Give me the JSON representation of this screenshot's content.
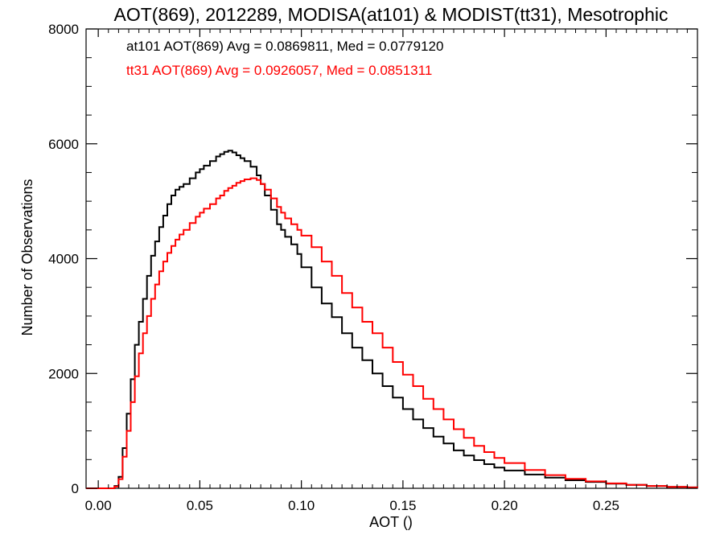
{
  "chart_data": {
    "type": "line",
    "title": "AOT(869), 2012289, MODISA(at101) & MODIST(tt31), Mesotrophic",
    "xlabel": "AOT ()",
    "ylabel": "Number of Observations",
    "xlim": [
      -0.006,
      0.295
    ],
    "ylim": [
      0,
      8000
    ],
    "x_ticks": [
      0.0,
      0.05,
      0.1,
      0.15,
      0.2,
      0.25
    ],
    "x_tick_labels": [
      "0.00",
      "0.05",
      "0.10",
      "0.15",
      "0.20",
      "0.25"
    ],
    "y_ticks": [
      0,
      2000,
      4000,
      6000,
      8000
    ],
    "y_tick_labels": [
      "0",
      "2000",
      "4000",
      "6000",
      "8000"
    ],
    "grid": false,
    "step_style": "histogram-step",
    "annotations": [
      {
        "text": "at101 AOT(869) Avg = 0.0869811, Med = 0.0779120",
        "color": "#000000"
      },
      {
        "text": "tt31 AOT(869) Avg = 0.0926057, Med = 0.0851311",
        "color": "#ff0000"
      }
    ],
    "series": [
      {
        "color": "#000000",
        "x": [
          -0.006,
          0.0,
          0.005,
          0.008,
          0.01,
          0.012,
          0.014,
          0.016,
          0.018,
          0.02,
          0.022,
          0.024,
          0.026,
          0.028,
          0.03,
          0.032,
          0.034,
          0.036,
          0.038,
          0.04,
          0.042,
          0.045,
          0.048,
          0.05,
          0.052,
          0.055,
          0.058,
          0.06,
          0.062,
          0.064,
          0.066,
          0.068,
          0.07,
          0.072,
          0.075,
          0.078,
          0.08,
          0.082,
          0.085,
          0.088,
          0.09,
          0.092,
          0.095,
          0.098,
          0.1,
          0.105,
          0.11,
          0.115,
          0.12,
          0.125,
          0.13,
          0.135,
          0.14,
          0.145,
          0.15,
          0.155,
          0.16,
          0.165,
          0.17,
          0.175,
          0.18,
          0.185,
          0.19,
          0.195,
          0.2,
          0.21,
          0.22,
          0.23,
          0.24,
          0.25,
          0.26,
          0.27,
          0.28,
          0.29,
          0.295
        ],
        "values": [
          0,
          0,
          0,
          40,
          200,
          700,
          1300,
          1900,
          2500,
          2900,
          3300,
          3700,
          4050,
          4300,
          4550,
          4750,
          4950,
          5100,
          5200,
          5250,
          5300,
          5400,
          5500,
          5560,
          5620,
          5700,
          5780,
          5820,
          5860,
          5880,
          5850,
          5800,
          5750,
          5700,
          5600,
          5450,
          5300,
          5100,
          4850,
          4600,
          4500,
          4380,
          4250,
          4080,
          3850,
          3500,
          3220,
          2980,
          2700,
          2450,
          2230,
          2000,
          1780,
          1580,
          1380,
          1200,
          1050,
          900,
          780,
          660,
          570,
          490,
          420,
          360,
          310,
          240,
          185,
          140,
          110,
          80,
          60,
          40,
          25,
          15,
          10
        ]
      },
      {
        "color": "#ff0000",
        "x": [
          -0.006,
          0.0,
          0.005,
          0.008,
          0.01,
          0.012,
          0.014,
          0.016,
          0.018,
          0.02,
          0.022,
          0.024,
          0.026,
          0.028,
          0.03,
          0.032,
          0.034,
          0.036,
          0.038,
          0.04,
          0.042,
          0.045,
          0.048,
          0.05,
          0.052,
          0.055,
          0.058,
          0.06,
          0.062,
          0.064,
          0.066,
          0.068,
          0.07,
          0.072,
          0.075,
          0.078,
          0.08,
          0.082,
          0.085,
          0.088,
          0.09,
          0.092,
          0.095,
          0.098,
          0.1,
          0.105,
          0.11,
          0.115,
          0.12,
          0.125,
          0.13,
          0.135,
          0.14,
          0.145,
          0.15,
          0.155,
          0.16,
          0.165,
          0.17,
          0.175,
          0.18,
          0.185,
          0.19,
          0.195,
          0.2,
          0.21,
          0.22,
          0.23,
          0.24,
          0.25,
          0.26,
          0.27,
          0.28,
          0.29,
          0.295
        ],
        "values": [
          0,
          0,
          0,
          30,
          160,
          550,
          1000,
          1500,
          1950,
          2350,
          2700,
          3000,
          3300,
          3550,
          3780,
          3950,
          4100,
          4220,
          4330,
          4420,
          4500,
          4620,
          4730,
          4800,
          4870,
          4950,
          5050,
          5100,
          5180,
          5230,
          5270,
          5320,
          5350,
          5380,
          5400,
          5370,
          5300,
          5200,
          5050,
          4900,
          4800,
          4700,
          4600,
          4500,
          4400,
          4200,
          3950,
          3700,
          3400,
          3150,
          2900,
          2700,
          2450,
          2200,
          1980,
          1780,
          1560,
          1380,
          1200,
          1030,
          880,
          740,
          630,
          530,
          440,
          320,
          230,
          165,
          120,
          85,
          60,
          40,
          25,
          15,
          10
        ]
      }
    ]
  }
}
